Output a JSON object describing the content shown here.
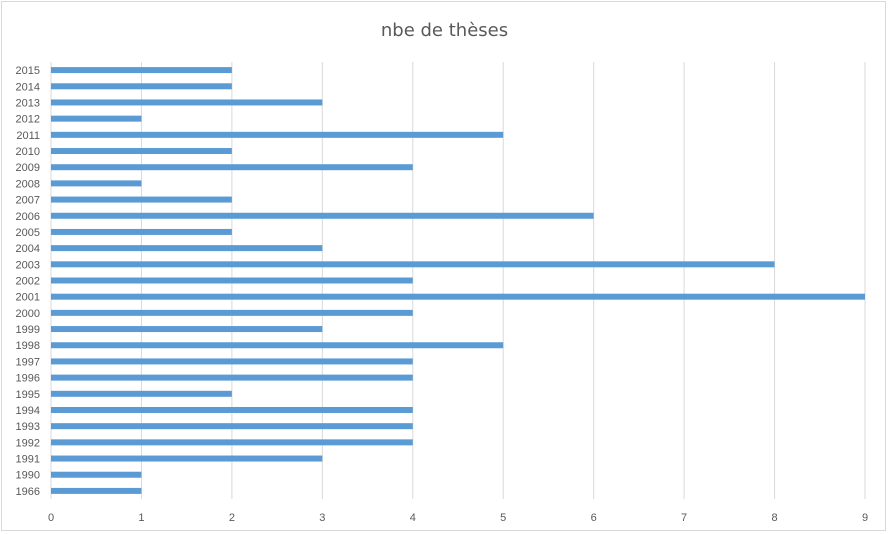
{
  "chart_data": {
    "type": "bar",
    "orientation": "horizontal",
    "title": "nbe de thèses",
    "xlabel": "",
    "ylabel": "",
    "categories": [
      "2015",
      "2014",
      "2013",
      "2012",
      "2011",
      "2010",
      "2009",
      "2008",
      "2007",
      "2006",
      "2005",
      "2004",
      "2003",
      "2002",
      "2001",
      "2000",
      "1999",
      "1998",
      "1997",
      "1996",
      "1995",
      "1994",
      "1993",
      "1992",
      "1991",
      "1990",
      "1966"
    ],
    "values": [
      2,
      2,
      3,
      1,
      5,
      2,
      4,
      1,
      2,
      6,
      2,
      3,
      8,
      4,
      9,
      4,
      3,
      5,
      4,
      4,
      2,
      4,
      4,
      4,
      3,
      1,
      1
    ],
    "xlim": [
      0,
      9
    ],
    "x_ticks": [
      "0",
      "1",
      "2",
      "3",
      "4",
      "5",
      "6",
      "7",
      "8",
      "9"
    ],
    "grid": "vertical",
    "legend": "none",
    "colors": {
      "bar": "#5b9bd5",
      "grid": "#d9d9d9",
      "text": "#595959"
    }
  }
}
